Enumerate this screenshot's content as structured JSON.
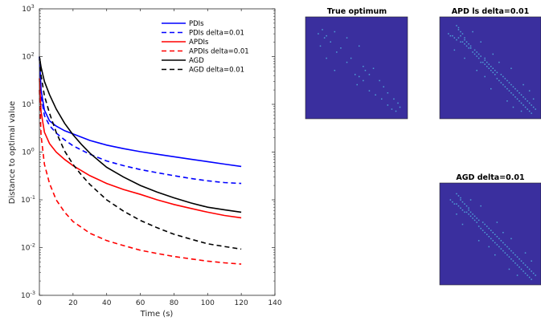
{
  "chart_data": [
    {
      "type": "line",
      "title": "",
      "xlabel": "Time (s)",
      "ylabel": "Distance to optimal value",
      "xlim": [
        0,
        140
      ],
      "ylim": [
        0.001,
        1000
      ],
      "yscale": "log",
      "grid": false,
      "legend_position": "top-right",
      "x_ticks": [
        "0",
        "20",
        "40",
        "60",
        "80",
        "100",
        "120",
        "140"
      ],
      "y_ticks": [
        {
          "base": "10",
          "exp": "-3"
        },
        {
          "base": "10",
          "exp": "-2"
        },
        {
          "base": "10",
          "exp": "-1"
        },
        {
          "base": "10",
          "exp": "0"
        },
        {
          "base": "10",
          "exp": "1"
        },
        {
          "base": "10",
          "exp": "2"
        },
        {
          "base": "10",
          "exp": "3"
        }
      ],
      "series": [
        {
          "name": "PDIs",
          "color": "#0000ff",
          "dash": "solid",
          "x": [
            0,
            1,
            3,
            6,
            10,
            15,
            20,
            30,
            40,
            50,
            60,
            70,
            80,
            90,
            100,
            110,
            120
          ],
          "y": [
            100,
            20,
            7.5,
            4.5,
            3.5,
            2.8,
            2.4,
            1.75,
            1.4,
            1.18,
            1.02,
            0.9,
            0.8,
            0.71,
            0.63,
            0.56,
            0.5
          ]
        },
        {
          "name": "PDIs delta=0.01",
          "color": "#0000ff",
          "dash": "dashed",
          "x": [
            0,
            1,
            3,
            6,
            10,
            15,
            20,
            30,
            40,
            50,
            60,
            70,
            80,
            90,
            100,
            110,
            120
          ],
          "y": [
            100,
            15,
            5.8,
            3.6,
            2.5,
            1.8,
            1.35,
            0.9,
            0.65,
            0.52,
            0.43,
            0.37,
            0.32,
            0.28,
            0.25,
            0.23,
            0.22
          ]
        },
        {
          "name": "APDIs",
          "color": "#ff0000",
          "dash": "solid",
          "x": [
            0,
            1,
            3,
            6,
            10,
            15,
            20,
            30,
            40,
            50,
            60,
            70,
            80,
            90,
            100,
            110,
            120
          ],
          "y": [
            35,
            7,
            2.6,
            1.5,
            1.0,
            0.7,
            0.52,
            0.32,
            0.22,
            0.165,
            0.13,
            0.1,
            0.08,
            0.066,
            0.055,
            0.047,
            0.042
          ]
        },
        {
          "name": "APDIs delta=0.01",
          "color": "#ff0000",
          "dash": "dashed",
          "x": [
            0,
            1,
            3,
            6,
            10,
            15,
            20,
            30,
            40,
            50,
            60,
            70,
            80,
            90,
            100,
            110,
            120
          ],
          "y": [
            20,
            2.2,
            0.55,
            0.22,
            0.1,
            0.055,
            0.035,
            0.02,
            0.014,
            0.011,
            0.0088,
            0.0075,
            0.0065,
            0.0058,
            0.0052,
            0.0048,
            0.0045
          ]
        },
        {
          "name": "AGD",
          "color": "#000000",
          "dash": "solid",
          "x": [
            0,
            1,
            3,
            6,
            10,
            15,
            20,
            25,
            30,
            40,
            50,
            60,
            70,
            80,
            90,
            100,
            110,
            120
          ],
          "y": [
            100,
            60,
            30,
            16,
            8,
            4,
            2.3,
            1.45,
            0.95,
            0.48,
            0.3,
            0.2,
            0.145,
            0.11,
            0.086,
            0.07,
            0.062,
            0.055
          ]
        },
        {
          "name": "AGD delta=0.01",
          "color": "#000000",
          "dash": "dashed",
          "x": [
            0,
            1,
            3,
            6,
            10,
            15,
            20,
            25,
            30,
            40,
            50,
            60,
            70,
            80,
            90,
            100,
            110,
            120
          ],
          "y": [
            90,
            40,
            15,
            6.5,
            2.6,
            1.05,
            0.55,
            0.33,
            0.21,
            0.1,
            0.058,
            0.037,
            0.026,
            0.019,
            0.015,
            0.012,
            0.0105,
            0.0093
          ]
        }
      ]
    },
    {
      "type": "heatmap",
      "title": "True optimum",
      "background_color": "#3a2f9e",
      "dot_color": "#4f9fd6",
      "rows": 50,
      "cols": 50,
      "dots": [
        [
          6,
          8
        ],
        [
          9,
          10
        ],
        [
          12,
          12
        ],
        [
          10,
          20
        ],
        [
          15,
          17
        ],
        [
          14,
          26
        ],
        [
          20,
          22
        ],
        [
          24,
          28
        ],
        [
          29,
          26
        ],
        [
          28,
          31
        ],
        [
          31,
          36
        ],
        [
          34,
          38
        ],
        [
          37,
          40
        ],
        [
          40,
          43
        ],
        [
          42,
          45
        ],
        [
          44,
          46
        ],
        [
          7,
          14
        ],
        [
          25,
          33
        ]
      ]
    },
    {
      "type": "heatmap",
      "title": "APD ls delta=0.01",
      "background_color": "#3a2f9e",
      "dot_color": "#4f9fd6",
      "rows": 50,
      "cols": 50,
      "dots": [
        [
          4,
          8
        ],
        [
          5,
          9
        ],
        [
          6,
          9
        ],
        [
          7,
          10
        ],
        [
          8,
          11
        ],
        [
          9,
          10
        ],
        [
          10,
          12
        ],
        [
          11,
          12
        ],
        [
          12,
          13
        ],
        [
          13,
          14
        ],
        [
          14,
          15
        ],
        [
          15,
          15
        ],
        [
          16,
          17
        ],
        [
          17,
          18
        ],
        [
          18,
          19
        ],
        [
          19,
          20
        ],
        [
          20,
          22
        ],
        [
          21,
          22
        ],
        [
          22,
          23
        ],
        [
          23,
          24
        ],
        [
          24,
          25
        ],
        [
          25,
          26
        ],
        [
          26,
          27
        ],
        [
          27,
          28
        ],
        [
          28,
          30
        ],
        [
          29,
          31
        ],
        [
          30,
          32
        ],
        [
          31,
          33
        ],
        [
          32,
          34
        ],
        [
          33,
          35
        ],
        [
          34,
          36
        ],
        [
          35,
          37
        ],
        [
          36,
          38
        ],
        [
          37,
          39
        ],
        [
          38,
          40
        ],
        [
          39,
          41
        ],
        [
          40,
          42
        ],
        [
          41,
          43
        ],
        [
          42,
          44
        ],
        [
          43,
          45
        ],
        [
          44,
          46
        ],
        [
          45,
          47
        ],
        [
          12,
          20
        ],
        [
          18,
          26
        ],
        [
          25,
          35
        ],
        [
          33,
          41
        ],
        [
          7,
          16
        ],
        [
          22,
          29
        ],
        [
          36,
          44
        ],
        [
          40,
          46
        ]
      ]
    },
    {
      "type": "heatmap",
      "title": "AGD delta=0.01",
      "background_color": "#3a2f9e",
      "dot_color": "#4f9fd6",
      "rows": 50,
      "cols": 50,
      "dots": [
        [
          5,
          8
        ],
        [
          6,
          9
        ],
        [
          7,
          10
        ],
        [
          8,
          10
        ],
        [
          9,
          11
        ],
        [
          10,
          12
        ],
        [
          11,
          13
        ],
        [
          12,
          14
        ],
        [
          13,
          14
        ],
        [
          14,
          15
        ],
        [
          15,
          16
        ],
        [
          16,
          17
        ],
        [
          17,
          18
        ],
        [
          18,
          19
        ],
        [
          19,
          21
        ],
        [
          20,
          22
        ],
        [
          21,
          23
        ],
        [
          22,
          24
        ],
        [
          23,
          25
        ],
        [
          24,
          26
        ],
        [
          25,
          27
        ],
        [
          26,
          28
        ],
        [
          27,
          29
        ],
        [
          28,
          30
        ],
        [
          29,
          31
        ],
        [
          30,
          32
        ],
        [
          31,
          33
        ],
        [
          32,
          34
        ],
        [
          33,
          35
        ],
        [
          34,
          36
        ],
        [
          35,
          37
        ],
        [
          36,
          38
        ],
        [
          37,
          39
        ],
        [
          38,
          40
        ],
        [
          39,
          41
        ],
        [
          40,
          42
        ],
        [
          41,
          43
        ],
        [
          42,
          44
        ],
        [
          43,
          45
        ],
        [
          44,
          46
        ],
        [
          45,
          47
        ],
        [
          11,
          20
        ],
        [
          19,
          28
        ],
        [
          27,
          35
        ],
        [
          34,
          42
        ],
        [
          8,
          15
        ],
        [
          24,
          31
        ],
        [
          38,
          45
        ]
      ]
    }
  ]
}
